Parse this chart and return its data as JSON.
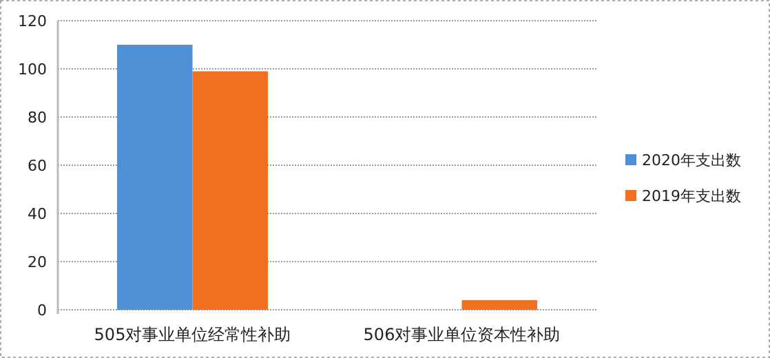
{
  "chart_data": {
    "type": "bar",
    "categories": [
      "505对事业单位经常性补助",
      "506对事业单位资本性补助"
    ],
    "series": [
      {
        "name": "2020年支出数",
        "color": "#4f8fd6",
        "values": [
          110,
          0
        ]
      },
      {
        "name": "2019年支出数",
        "color": "#f07020",
        "values": [
          99,
          4
        ]
      }
    ],
    "ylim": [
      0,
      120
    ],
    "yticks": [
      0,
      20,
      40,
      60,
      80,
      100,
      120
    ],
    "grid": "y",
    "legend": "right"
  }
}
